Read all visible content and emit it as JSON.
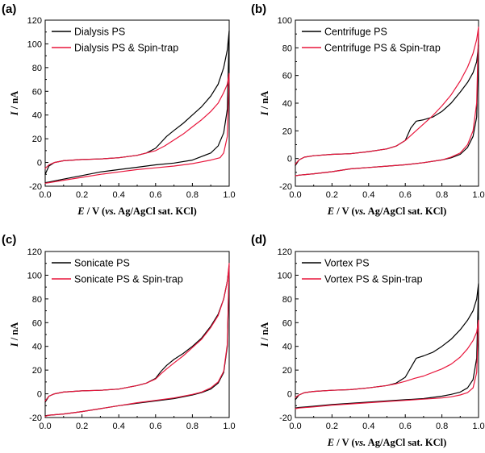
{
  "chart_data": [
    {
      "panel": "(a)",
      "type": "line",
      "xlabel": {
        "var": "E",
        "rest": " / V (",
        "vs": "vs.",
        "ref": " Ag/AgCl sat. KCl)"
      },
      "ylabel": {
        "var": "I",
        "rest": " / nA"
      },
      "xlim": [
        0.0,
        1.0
      ],
      "ylim": [
        -20,
        120
      ],
      "xticks": [
        "0.0",
        "0.2",
        "0.4",
        "0.6",
        "0.8",
        "1.0"
      ],
      "yticks": [
        "-20",
        "0",
        "20",
        "40",
        "60",
        "80",
        "100",
        "120"
      ],
      "legend_position": "top-left",
      "series": [
        {
          "name": "Dialysis PS",
          "color": "#000000",
          "x": [
            0.0,
            0.02,
            0.05,
            0.1,
            0.2,
            0.3,
            0.4,
            0.5,
            0.55,
            0.6,
            0.63,
            0.66,
            0.7,
            0.75,
            0.8,
            0.85,
            0.9,
            0.94,
            0.97,
            0.99,
            1.0,
            0.99,
            0.97,
            0.94,
            0.9,
            0.85,
            0.8,
            0.7,
            0.6,
            0.5,
            0.4,
            0.3,
            0.2,
            0.1,
            0.02,
            0.0
          ],
          "y": [
            -10,
            -3,
            0,
            1.5,
            2.5,
            3,
            4,
            6,
            8,
            12,
            17,
            22,
            27,
            33,
            40,
            47,
            56,
            66,
            80,
            95,
            111,
            45,
            25,
            14,
            8,
            5,
            2,
            -0.5,
            -2,
            -4,
            -6,
            -8,
            -11,
            -14,
            -16.5,
            -17
          ]
        },
        {
          "name": "Dialysis PS & Spin-trap",
          "color": "#e8163c",
          "x": [
            0.0,
            0.02,
            0.05,
            0.1,
            0.2,
            0.3,
            0.4,
            0.5,
            0.6,
            0.65,
            0.7,
            0.75,
            0.8,
            0.85,
            0.9,
            0.94,
            0.97,
            0.99,
            1.0,
            0.99,
            0.97,
            0.95,
            0.9,
            0.85,
            0.8,
            0.7,
            0.6,
            0.5,
            0.4,
            0.3,
            0.2,
            0.1,
            0.02,
            0.0
          ],
          "y": [
            -5,
            -2,
            0,
            1.5,
            2.5,
            3,
            4,
            6,
            10,
            14,
            19,
            24,
            30,
            36,
            43,
            50,
            59,
            66,
            75,
            22,
            8,
            4,
            2,
            0.5,
            -1,
            -3,
            -4.5,
            -6,
            -8,
            -10,
            -12.5,
            -15,
            -17,
            -17.5
          ]
        }
      ]
    },
    {
      "panel": "(b)",
      "type": "line",
      "xlabel": {
        "var": "E",
        "rest": " / V (",
        "vs": "vs.",
        "ref": " Ag/AgCl sat. KCl)"
      },
      "ylabel": {
        "var": "I",
        "rest": " / nA"
      },
      "xlim": [
        0.0,
        1.0
      ],
      "ylim": [
        -20,
        100
      ],
      "xticks": [
        "0.0",
        "0.2",
        "0.4",
        "0.6",
        "0.8",
        "1.0"
      ],
      "yticks": [
        "-20",
        "0",
        "20",
        "40",
        "60",
        "80",
        "100"
      ],
      "legend_position": "top-left",
      "series": [
        {
          "name": "Centrifuge PS",
          "color": "#000000",
          "x": [
            0.0,
            0.02,
            0.05,
            0.1,
            0.2,
            0.3,
            0.4,
            0.5,
            0.55,
            0.6,
            0.63,
            0.66,
            0.7,
            0.75,
            0.8,
            0.85,
            0.9,
            0.94,
            0.97,
            0.99,
            1.0,
            0.99,
            0.97,
            0.94,
            0.9,
            0.85,
            0.8,
            0.7,
            0.6,
            0.5,
            0.4,
            0.3,
            0.2,
            0.1,
            0.02,
            0.0
          ],
          "y": [
            -5,
            -1,
            1,
            2,
            3,
            3.5,
            5,
            7,
            9,
            13,
            22,
            27,
            28,
            30,
            34,
            40,
            48,
            55,
            62,
            70,
            82,
            30,
            16,
            8,
            3,
            0.5,
            -1,
            -3,
            -4.5,
            -5.5,
            -6.5,
            -7.5,
            -9.5,
            -11,
            -12,
            -12.5
          ]
        },
        {
          "name": "Centrifuge PS &  Spin-trap",
          "color": "#e8163c",
          "x": [
            0.0,
            0.02,
            0.05,
            0.1,
            0.2,
            0.3,
            0.4,
            0.5,
            0.55,
            0.6,
            0.65,
            0.7,
            0.75,
            0.8,
            0.85,
            0.9,
            0.94,
            0.97,
            0.99,
            1.0,
            0.99,
            0.97,
            0.94,
            0.9,
            0.85,
            0.8,
            0.7,
            0.6,
            0.5,
            0.4,
            0.3,
            0.2,
            0.1,
            0.02,
            0.0
          ],
          "y": [
            -4,
            -1,
            1,
            2,
            3,
            3.5,
            5,
            7,
            9,
            13,
            19,
            25,
            31,
            38,
            46,
            56,
            66,
            76,
            86,
            95,
            40,
            20,
            10,
            4,
            1,
            -1,
            -3,
            -4.5,
            -5.5,
            -6.5,
            -7.5,
            -9.5,
            -11,
            -12,
            -12.5
          ]
        }
      ]
    },
    {
      "panel": "(c)",
      "type": "line",
      "xlabel": {
        "var": "",
        "rest": "",
        "vs": "",
        "ref": ""
      },
      "ylabel": {
        "var": "I",
        "rest": " / nA"
      },
      "xlim": [
        0.0,
        1.0
      ],
      "ylim": [
        -20,
        120
      ],
      "xticks": [
        "0.0",
        "0.2",
        "0.4",
        "0.6",
        "0.8",
        "1.0"
      ],
      "yticks": [
        "-20",
        "0",
        "20",
        "40",
        "60",
        "80",
        "100",
        "120"
      ],
      "legend_position": "top-left",
      "series": [
        {
          "name": "Sonicate PS",
          "color": "#000000",
          "x": [
            0.0,
            0.02,
            0.05,
            0.1,
            0.2,
            0.3,
            0.4,
            0.5,
            0.55,
            0.6,
            0.63,
            0.66,
            0.7,
            0.75,
            0.8,
            0.85,
            0.9,
            0.94,
            0.97,
            0.99,
            1.0,
            0.99,
            0.97,
            0.94,
            0.9,
            0.85,
            0.8,
            0.7,
            0.6,
            0.5,
            0.4,
            0.3,
            0.2,
            0.1,
            0.02,
            0.0
          ],
          "y": [
            -7,
            -2,
            0,
            1.5,
            2.5,
            3,
            4,
            7,
            9,
            13,
            19,
            24,
            29,
            34,
            40,
            47,
            57,
            67,
            80,
            95,
            108,
            40,
            18,
            9,
            4,
            1,
            -1,
            -4,
            -6,
            -8,
            -10,
            -12.5,
            -15,
            -17,
            -18,
            -18.5
          ]
        },
        {
          "name": "Sonicate PS &  Spin-trap",
          "color": "#e8163c",
          "x": [
            0.0,
            0.02,
            0.05,
            0.1,
            0.2,
            0.3,
            0.4,
            0.5,
            0.55,
            0.6,
            0.63,
            0.66,
            0.7,
            0.75,
            0.8,
            0.85,
            0.9,
            0.94,
            0.97,
            0.99,
            1.0,
            0.99,
            0.97,
            0.94,
            0.9,
            0.85,
            0.8,
            0.7,
            0.6,
            0.5,
            0.4,
            0.3,
            0.2,
            0.1,
            0.02,
            0.0
          ],
          "y": [
            -6,
            -2,
            0,
            1.5,
            2.5,
            3,
            4,
            7,
            9,
            12.5,
            17,
            21,
            26,
            32,
            39,
            46,
            56,
            66,
            80,
            95,
            110,
            42,
            19,
            10,
            5,
            1.5,
            -0.5,
            -3.5,
            -5.5,
            -7.5,
            -10,
            -12.5,
            -15,
            -17,
            -18,
            -19
          ]
        }
      ]
    },
    {
      "panel": "(d)",
      "type": "line",
      "xlabel": {
        "var": "E",
        "rest": " / V (",
        "vs": "vs.",
        "ref": " Ag/AgCl sat. KCl)"
      },
      "ylabel": {
        "var": "I",
        "rest": " / nA"
      },
      "xlim": [
        0.0,
        1.0
      ],
      "ylim": [
        -20,
        120
      ],
      "xticks": [
        "0.0",
        "0.2",
        "0.4",
        "0.6",
        "0.8",
        "1.0"
      ],
      "yticks": [
        "-20",
        "0",
        "20",
        "40",
        "60",
        "80",
        "100",
        "120"
      ],
      "legend_position": "top-left",
      "series": [
        {
          "name": "Vortex PS",
          "color": "#000000",
          "x": [
            0.0,
            0.02,
            0.05,
            0.1,
            0.2,
            0.3,
            0.4,
            0.5,
            0.55,
            0.6,
            0.63,
            0.66,
            0.7,
            0.75,
            0.8,
            0.85,
            0.9,
            0.94,
            0.97,
            0.99,
            1.0,
            0.99,
            0.97,
            0.94,
            0.9,
            0.85,
            0.8,
            0.7,
            0.6,
            0.5,
            0.4,
            0.3,
            0.2,
            0.1,
            0.02,
            0.0
          ],
          "y": [
            -5,
            -1,
            1,
            2,
            3,
            3.5,
            5,
            7,
            9,
            14,
            22,
            30,
            32,
            35,
            40,
            46,
            54,
            62,
            70,
            80,
            93,
            30,
            12,
            5,
            1.5,
            -0.5,
            -2,
            -4,
            -5,
            -6,
            -7,
            -8,
            -9,
            -10.5,
            -11.5,
            -12
          ]
        },
        {
          "name": "Vortex PS & Spin-trap",
          "color": "#e8163c",
          "x": [
            0.0,
            0.02,
            0.05,
            0.1,
            0.2,
            0.3,
            0.4,
            0.5,
            0.55,
            0.6,
            0.65,
            0.7,
            0.75,
            0.8,
            0.85,
            0.9,
            0.94,
            0.97,
            0.99,
            1.0,
            0.99,
            0.97,
            0.94,
            0.9,
            0.85,
            0.8,
            0.7,
            0.6,
            0.5,
            0.4,
            0.3,
            0.2,
            0.1,
            0.02,
            0.0
          ],
          "y": [
            -3,
            -1,
            1,
            2,
            3,
            3.5,
            5,
            7,
            8.5,
            10.5,
            13,
            15,
            18,
            21,
            25,
            31,
            38,
            45,
            52,
            62,
            18,
            5,
            1,
            -1,
            -2.5,
            -3.5,
            -4.5,
            -5.5,
            -6.5,
            -7.5,
            -8.5,
            -9.5,
            -11,
            -12,
            -12.5
          ]
        }
      ]
    }
  ]
}
